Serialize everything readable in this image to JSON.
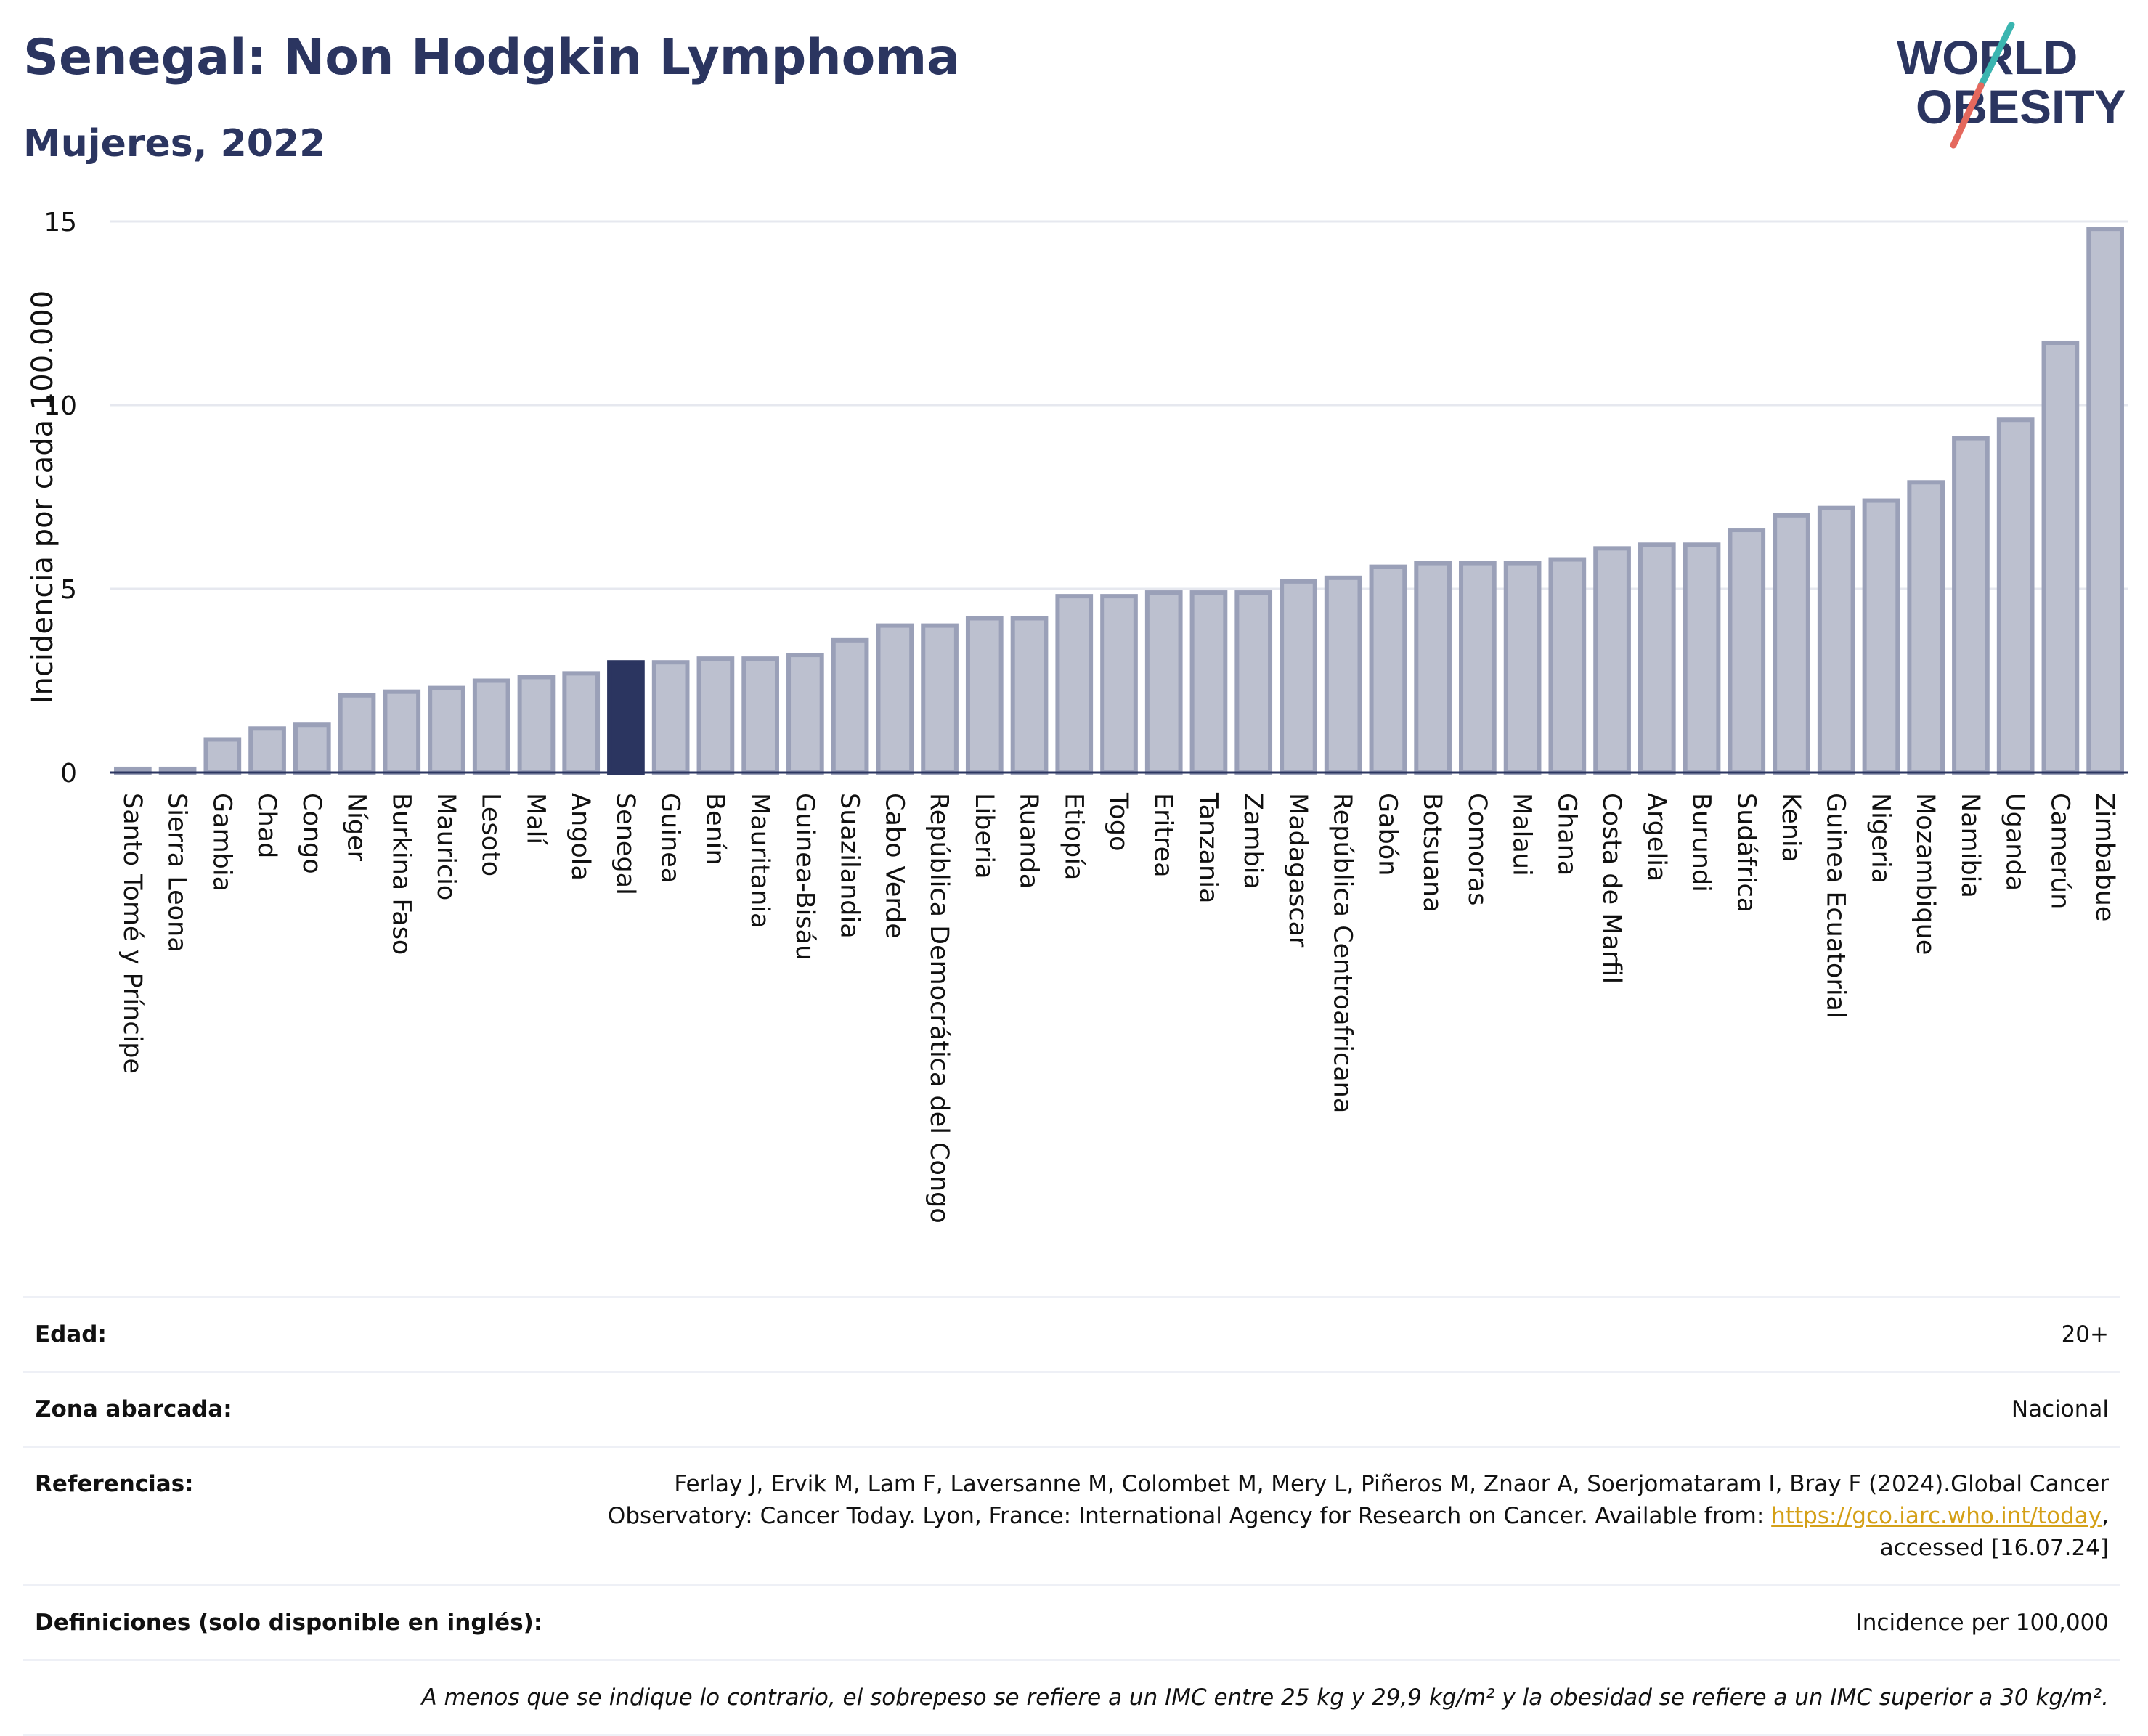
{
  "header": {
    "title": "Senegal: Non Hodgkin Lymphoma",
    "subtitle": "Mujeres, 2022"
  },
  "logo": {
    "line1": "WORLD",
    "line2": "OBESITY",
    "colors": {
      "text": "#2b3560",
      "slash_top": "#3ab5b0",
      "slash_bottom": "#e4685d"
    }
  },
  "colors": {
    "bar": "#bcc0cf",
    "bar_border": "#9aa0b8",
    "highlight": "#2b3560",
    "grid": "#e6e8ef",
    "axis_text": "#111111"
  },
  "chart_data": {
    "type": "bar",
    "title": "Senegal: Non Hodgkin Lymphoma",
    "subtitle": "Mujeres, 2022",
    "xlabel": "",
    "ylabel": "Incidencia por cada 100.000",
    "ylim": [
      0,
      15
    ],
    "yticks": [
      0,
      5,
      10,
      15
    ],
    "grid": true,
    "highlight": "Senegal",
    "categories": [
      "Santo Tomé y Príncipe",
      "Sierra Leona",
      "Gambia",
      "Chad",
      "Congo",
      "Níger",
      "Burkina Faso",
      "Mauricio",
      "Lesoto",
      "Malí",
      "Angola",
      "Senegal",
      "Guinea",
      "Benín",
      "Mauritania",
      "Guinea-Bisáu",
      "Suazilandia",
      "Cabo Verde",
      "República Democrática del Congo",
      "Liberia",
      "Ruanda",
      "Etiopía",
      "Togo",
      "Eritrea",
      "Tanzania",
      "Zambia",
      "Madagascar",
      "República Centroafricana",
      "Gabón",
      "Botsuana",
      "Comoras",
      "Malaui",
      "Ghana",
      "Costa de Marfil",
      "Argelia",
      "Burundi",
      "Sudáfrica",
      "Kenia",
      "Guinea Ecuatorial",
      "Nigeria",
      "Mozambique",
      "Namibia",
      "Uganda",
      "Camerún",
      "Zimbabue"
    ],
    "values": [
      0.1,
      0.1,
      0.9,
      1.2,
      1.3,
      2.1,
      2.2,
      2.3,
      2.5,
      2.6,
      2.7,
      3.0,
      3.0,
      3.1,
      3.1,
      3.2,
      3.6,
      4.0,
      4.0,
      4.2,
      4.2,
      4.8,
      4.8,
      4.9,
      4.9,
      4.9,
      5.2,
      5.3,
      5.6,
      5.7,
      5.7,
      5.7,
      5.8,
      6.1,
      6.2,
      6.2,
      6.6,
      7.0,
      7.2,
      7.4,
      7.9,
      9.1,
      9.6,
      11.7,
      14.8
    ]
  },
  "meta": {
    "age_label": "Edad:",
    "age_value": "20+",
    "area_label": "Zona abarcada:",
    "area_value": "Nacional",
    "refs_label": "Referencias:",
    "refs_text1": "Ferlay J, Ervik M, Lam F, Laversanne M, Colombet M, Mery L, Piñeros M, Znaor A, Soerjomataram I, Bray F (2024).Global Cancer",
    "refs_text2": "Observatory: Cancer Today. Lyon, France: International Agency for Research on Cancer. Available from: ",
    "refs_link": "https://gco.iarc.who.int/today",
    "refs_text3": ",",
    "refs_text4": "accessed [16.07.24]",
    "defs_label": "Definiciones (solo disponible en inglés):",
    "defs_value": "Incidence per 100,000",
    "note": "A menos que se indique lo contrario, el sobrepeso se refiere a un IMC entre 25 kg y 29,9 kg/m² y la obesidad se refiere a un IMC superior a 30 kg/m²."
  }
}
